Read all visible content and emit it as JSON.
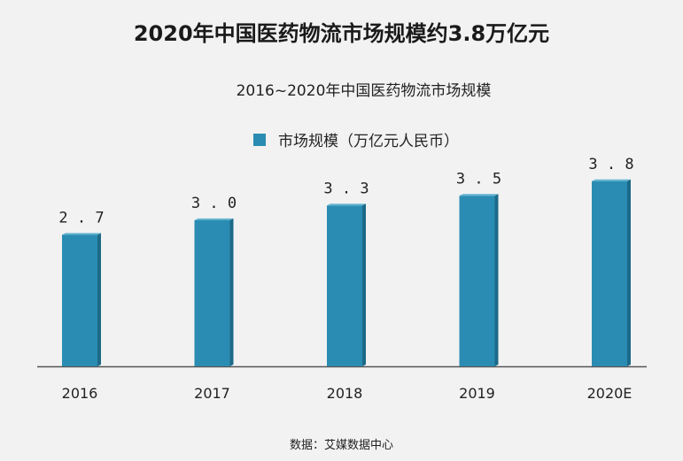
{
  "page": {
    "title": "2020年中国医药物流市场规模约3.8万亿元",
    "source": "数据：艾媒数据中心"
  },
  "colors": {
    "bar_front": "#2a8cb2",
    "bar_side": "#1c6a88",
    "bar_top": "#5fb3d1",
    "axis": "#555555"
  },
  "chart_data": {
    "type": "bar",
    "title": "2016~2020年中国医药物流市场规模",
    "categories": [
      "2016",
      "2017",
      "2018",
      "2019",
      "2020E"
    ],
    "value_labels": [
      "2.7",
      "3.0",
      "3.3",
      "3.5",
      "3.8"
    ],
    "series": [
      {
        "name": "市场规模（万亿元人民币）",
        "values": [
          2.7,
          3.0,
          3.3,
          3.5,
          3.8
        ]
      }
    ],
    "ylim": [
      0,
      4.8
    ],
    "grid": false,
    "legend_position": "top-center"
  }
}
